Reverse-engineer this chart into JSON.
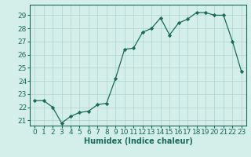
{
  "x": [
    0,
    1,
    2,
    3,
    4,
    5,
    6,
    7,
    8,
    9,
    10,
    11,
    12,
    13,
    14,
    15,
    16,
    17,
    18,
    19,
    20,
    21,
    22,
    23
  ],
  "y": [
    22.5,
    22.5,
    22.0,
    20.8,
    21.3,
    21.6,
    21.7,
    22.2,
    22.3,
    24.2,
    26.4,
    26.5,
    27.7,
    28.0,
    28.8,
    27.5,
    28.4,
    28.7,
    29.2,
    29.2,
    29.0,
    29.0,
    27.0,
    24.7
  ],
  "line_color": "#1a6b5a",
  "marker_color": "#1a6b5a",
  "bg_color": "#d4eeea",
  "grid_color": "#aed4ce",
  "xlabel": "Humidex (Indice chaleur)",
  "ylim_min": 20.6,
  "ylim_max": 29.8,
  "xlim_min": -0.5,
  "xlim_max": 23.5,
  "yticks": [
    21,
    22,
    23,
    24,
    25,
    26,
    27,
    28,
    29
  ],
  "xticks": [
    0,
    1,
    2,
    3,
    4,
    5,
    6,
    7,
    8,
    9,
    10,
    11,
    12,
    13,
    14,
    15,
    16,
    17,
    18,
    19,
    20,
    21,
    22,
    23
  ],
  "xlabel_fontsize": 7,
  "tick_fontsize": 6.5,
  "linewidth": 0.9,
  "markersize": 2.2
}
